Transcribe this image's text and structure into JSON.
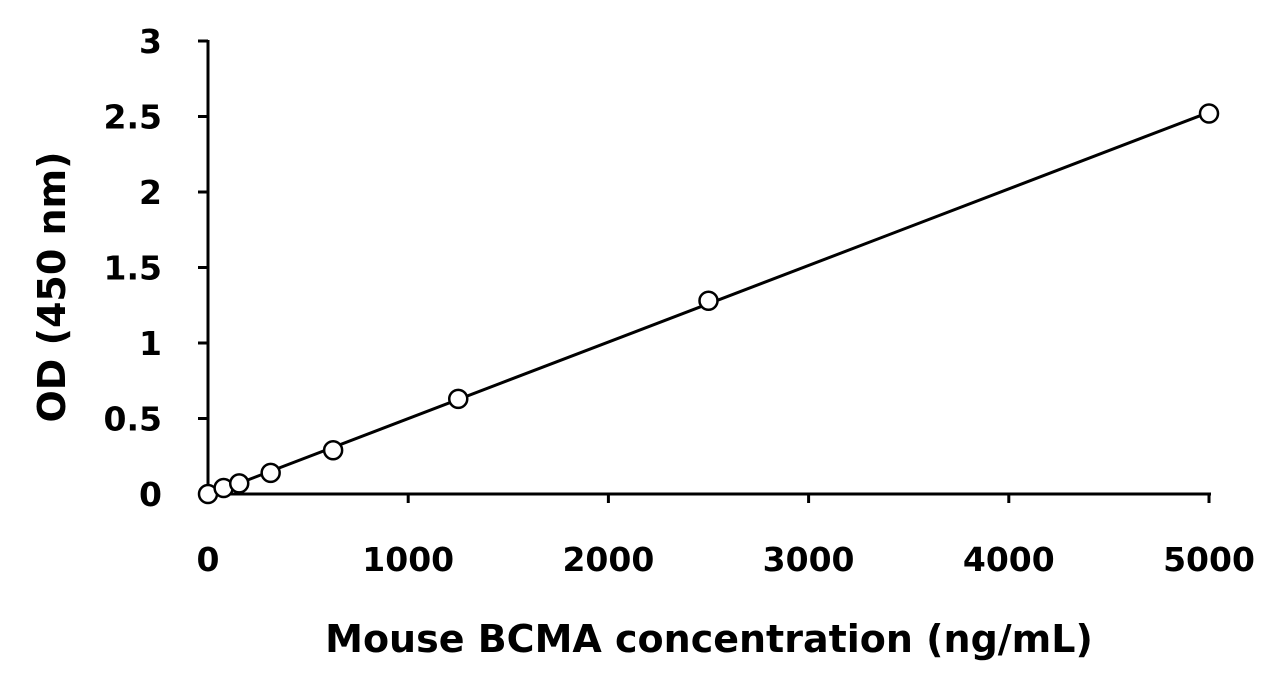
{
  "chart_data": {
    "type": "scatter",
    "title": "",
    "xlabel": "Mouse BCMA concentration (ng/mL)",
    "ylabel": "OD (450 nm)",
    "xlim": [
      0,
      5000
    ],
    "ylim": [
      0,
      3
    ],
    "x_ticks": [
      "0",
      "1000",
      "2000",
      "3000",
      "4000",
      "5000"
    ],
    "y_ticks": [
      "0",
      "0.5",
      "1",
      "1.5",
      "2",
      "2.5",
      "3"
    ],
    "grid": false,
    "legend": "none",
    "series": [
      {
        "marker": "open-circle",
        "trendline": "linear",
        "points": [
          {
            "x": 0,
            "y": 0.0
          },
          {
            "x": 78,
            "y": 0.04
          },
          {
            "x": 156,
            "y": 0.07
          },
          {
            "x": 313,
            "y": 0.14
          },
          {
            "x": 625,
            "y": 0.29
          },
          {
            "x": 1250,
            "y": 0.63
          },
          {
            "x": 2500,
            "y": 1.28
          },
          {
            "x": 5000,
            "y": 2.52
          }
        ]
      }
    ],
    "colors": {
      "line": "#000000",
      "marker_fill": "#ffffff",
      "background": "#ffffff"
    }
  }
}
